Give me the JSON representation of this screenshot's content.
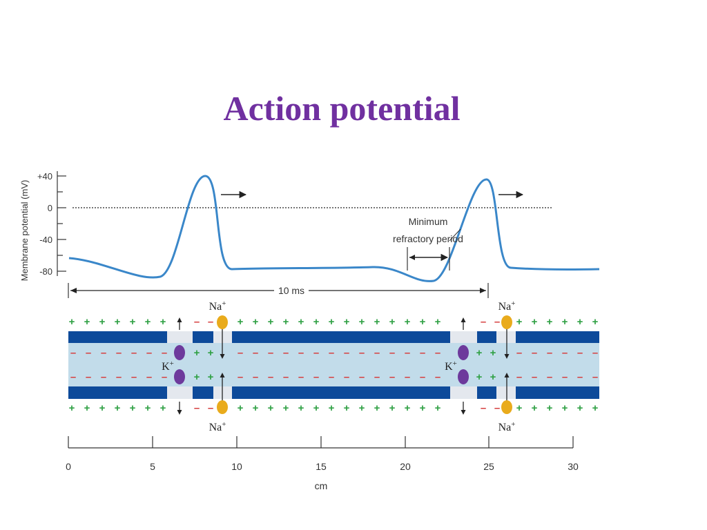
{
  "title": "Action potential",
  "chart": {
    "ylabel": "Membrane potential (mV)",
    "yticks": [
      "+40",
      "0",
      "-40",
      "-80"
    ],
    "interval_label": "10 ms",
    "refractory_label_line1": "Minimum",
    "refractory_label_line2": "refractory period"
  },
  "axon": {
    "na_label": "Na",
    "k_label": "K",
    "ion_charge": "+",
    "colors": {
      "membrane": "#0d4a9a",
      "axoplasm": "#c2dcea",
      "channel": "#e4e8ee",
      "plus": "#2ea043",
      "minus": "#d63c3c",
      "sodium": "#e9ab1c",
      "potassium": "#6d3a9c",
      "trace": "#3a87c9"
    }
  },
  "distance_axis": {
    "label": "cm",
    "ticks": [
      "0",
      "5",
      "10",
      "15",
      "20",
      "25",
      "30"
    ]
  }
}
